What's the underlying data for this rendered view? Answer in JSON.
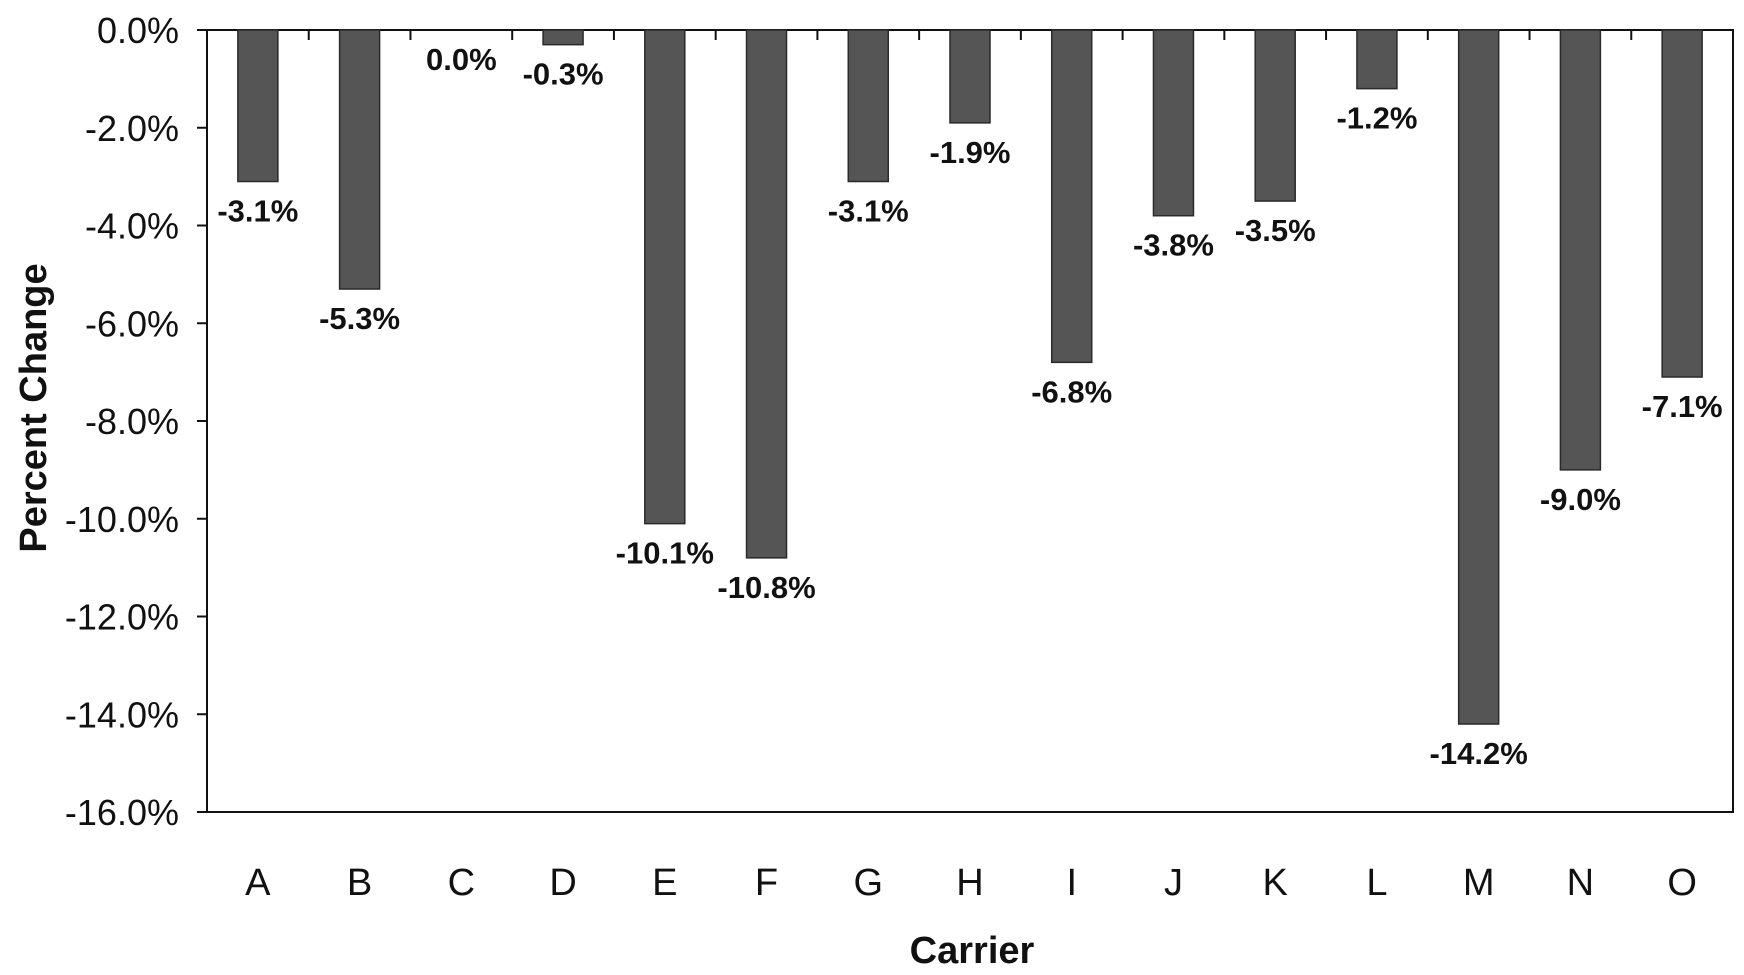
{
  "chart_data": {
    "type": "bar",
    "title": "",
    "xlabel": "Carrier",
    "ylabel": "Percent Change",
    "categories": [
      "A",
      "B",
      "C",
      "D",
      "E",
      "F",
      "G",
      "H",
      "I",
      "J",
      "K",
      "L",
      "M",
      "N",
      "O"
    ],
    "values": [
      -3.1,
      -5.3,
      0.0,
      -0.3,
      -10.1,
      -10.8,
      -3.1,
      -1.9,
      -6.8,
      -3.8,
      -3.5,
      -1.2,
      -14.2,
      -9.0,
      -7.1
    ],
    "data_labels": [
      "-3.1%",
      "-5.3%",
      "0.0%",
      "-0.3%",
      "-10.1%",
      "-10.8%",
      "-3.1%",
      "-1.9%",
      "-6.8%",
      "-3.8%",
      "-3.5%",
      "-1.2%",
      "-14.2%",
      "-9.0%",
      "-7.1%"
    ],
    "ylim": [
      -16.0,
      0.0
    ],
    "yticks": [
      0,
      -2,
      -4,
      -6,
      -8,
      -10,
      -12,
      -14,
      -16
    ],
    "ytick_labels": [
      "0.0%",
      "-2.0%",
      "-4.0%",
      "-6.0%",
      "-8.0%",
      "-10.0%",
      "-12.0%",
      "-14.0%",
      "-16.0%"
    ],
    "grid": false,
    "legend": "none",
    "bar_color": "#555555"
  }
}
